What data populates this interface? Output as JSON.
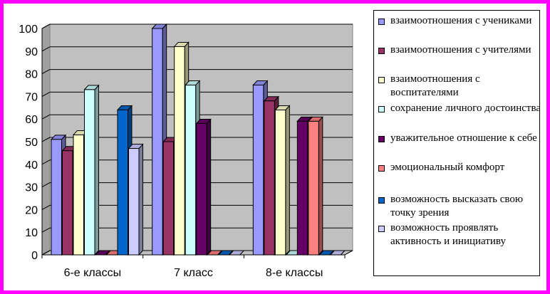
{
  "chart_data": {
    "type": "bar",
    "categories": [
      "6-е классы",
      "7 класс",
      "8-е классы"
    ],
    "ylim": [
      0,
      100
    ],
    "yticks": [
      0,
      10,
      20,
      30,
      40,
      50,
      60,
      70,
      80,
      90,
      100
    ],
    "grid": true,
    "legend_position": "right",
    "series": [
      {
        "name": "взаимоотношения с учениками",
        "values": [
          51,
          100,
          75
        ],
        "color": "#9999ff"
      },
      {
        "name": "взаимоотношения с учителями",
        "values": [
          46,
          50,
          68
        ],
        "color": "#993366"
      },
      {
        "name": "взаимоотношения с воспитателями",
        "values": [
          53,
          92,
          64
        ],
        "color": "#ffffcc"
      },
      {
        "name": "сохранение личного достоинства",
        "values": [
          73,
          75,
          0
        ],
        "color": "#ccffff"
      },
      {
        "name": "уважительное отношение к себе",
        "values": [
          0,
          58,
          59
        ],
        "color": "#660066"
      },
      {
        "name": "эмоциональный комфорт",
        "values": [
          0,
          0,
          59
        ],
        "color": "#ff8080"
      },
      {
        "name": "возможность высказать свою точку зрения",
        "values": [
          64,
          0,
          0
        ],
        "color": "#0066cc"
      },
      {
        "name": "возможность проявлять активность и инициативу",
        "values": [
          47,
          0,
          0
        ],
        "color": "#ccccff"
      }
    ]
  }
}
